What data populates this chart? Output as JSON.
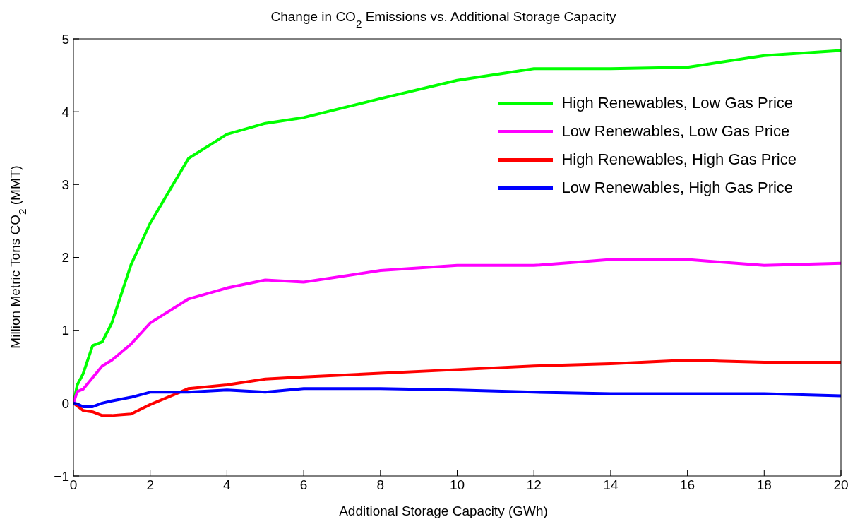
{
  "chart_data": {
    "type": "line",
    "title": "Change in CO$_{2}$ Emissions vs. Additional Storage Capacity",
    "xlabel": "Additional Storage Capacity (GWh)",
    "ylabel": "Million Metric Tons CO$_{2}$ (MMT)",
    "x": [
      0,
      0.1,
      0.25,
      0.5,
      0.75,
      1,
      1.5,
      2,
      3,
      4,
      5,
      6,
      8,
      10,
      12,
      14,
      16,
      18,
      20
    ],
    "series": [
      {
        "name": "High Renewables, Low Gas Price",
        "color": "#00ff00",
        "values": [
          0,
          0.25,
          0.4,
          0.79,
          0.84,
          1.1,
          1.9,
          2.47,
          3.36,
          3.69,
          3.84,
          3.92,
          4.18,
          4.43,
          4.59,
          4.59,
          4.61,
          4.77,
          4.84
        ]
      },
      {
        "name": "Low Renewables, Low Gas Price",
        "color": "#ff00ff",
        "values": [
          0,
          0.16,
          0.19,
          0.35,
          0.51,
          0.59,
          0.81,
          1.1,
          1.43,
          1.58,
          1.69,
          1.66,
          1.82,
          1.89,
          1.89,
          1.97,
          1.97,
          1.89,
          1.92
        ]
      },
      {
        "name": "High Renewables, High Gas Price",
        "color": "#ff0000",
        "values": [
          0,
          -0.04,
          -0.1,
          -0.12,
          -0.17,
          -0.17,
          -0.15,
          -0.02,
          0.2,
          0.25,
          0.33,
          0.36,
          0.41,
          0.46,
          0.51,
          0.54,
          0.59,
          0.56,
          0.56
        ]
      },
      {
        "name": "Low Renewables, High Gas Price",
        "color": "#0000ff",
        "values": [
          0,
          -0.01,
          -0.05,
          -0.05,
          0,
          0.03,
          0.08,
          0.15,
          0.15,
          0.18,
          0.15,
          0.2,
          0.2,
          0.18,
          0.15,
          0.13,
          0.13,
          0.13,
          0.1
        ]
      }
    ],
    "xlim": [
      0,
      20
    ],
    "xticks": [
      0,
      2,
      4,
      6,
      8,
      10,
      12,
      14,
      16,
      18,
      20
    ],
    "ylim": [
      -1,
      5
    ],
    "yticks": [
      -1,
      0,
      1,
      2,
      3,
      4,
      5
    ],
    "grid": false,
    "legend": "top right",
    "marker": "none",
    "line_style": "solid"
  }
}
